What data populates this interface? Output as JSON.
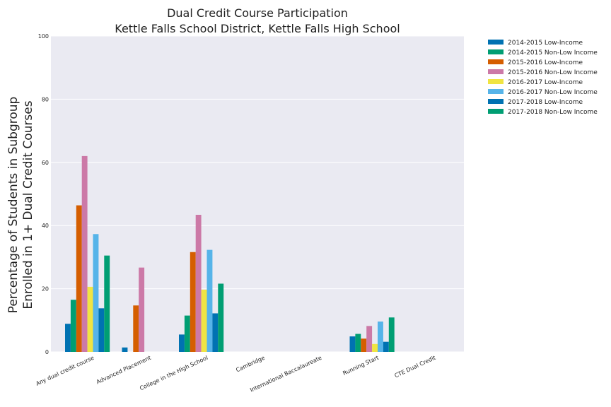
{
  "chart_data": {
    "type": "bar",
    "title": [
      "Dual Credit Course Participation",
      "Kettle Falls School District, Kettle Falls High School"
    ],
    "ylabel": [
      "Percentage of Students in Subgroup",
      "Enrolled in 1+ Dual Credit Courses"
    ],
    "xlabel": "",
    "ylim": [
      0,
      100
    ],
    "yticks": [
      0,
      20,
      40,
      60,
      80,
      100
    ],
    "grid": true,
    "legend_position": "outside-top-right",
    "categories": [
      "Any dual credit course",
      "Advanced Placement",
      "College in the High School",
      "Cambridge",
      "International Baccalaureate",
      "Running Start",
      "CTE Dual Credit"
    ],
    "series": [
      {
        "name": "2014-2015 Low-Income",
        "color": "#0072b2",
        "values": [
          8.9,
          1.4,
          5.5,
          0,
          0,
          4.9,
          0
        ]
      },
      {
        "name": "2014-2015 Non-Low Income",
        "color": "#009e73",
        "values": [
          16.5,
          0,
          11.5,
          0,
          0,
          5.7,
          0
        ]
      },
      {
        "name": "2015-2016 Low-Income",
        "color": "#d55e00",
        "values": [
          46.4,
          14.7,
          31.6,
          0,
          0,
          4.2,
          0
        ]
      },
      {
        "name": "2015-2016 Non-Low Income",
        "color": "#cc79a7",
        "values": [
          62.0,
          26.7,
          43.4,
          0,
          0,
          8.2,
          0
        ]
      },
      {
        "name": "2016-2017 Low-Income",
        "color": "#f0e442",
        "values": [
          20.6,
          0,
          19.7,
          0,
          0,
          2.5,
          0
        ]
      },
      {
        "name": "2016-2017 Non-Low Income",
        "color": "#56b4e9",
        "values": [
          37.3,
          0,
          32.3,
          0,
          0,
          9.6,
          0
        ]
      },
      {
        "name": "2017-2018 Low-Income",
        "color": "#0072b2",
        "values": [
          13.8,
          0,
          12.2,
          0,
          0,
          3.2,
          0
        ]
      },
      {
        "name": "2017-2018 Non-Low Income",
        "color": "#009e73",
        "values": [
          30.5,
          0,
          21.6,
          0,
          0,
          10.9,
          0
        ]
      }
    ]
  }
}
